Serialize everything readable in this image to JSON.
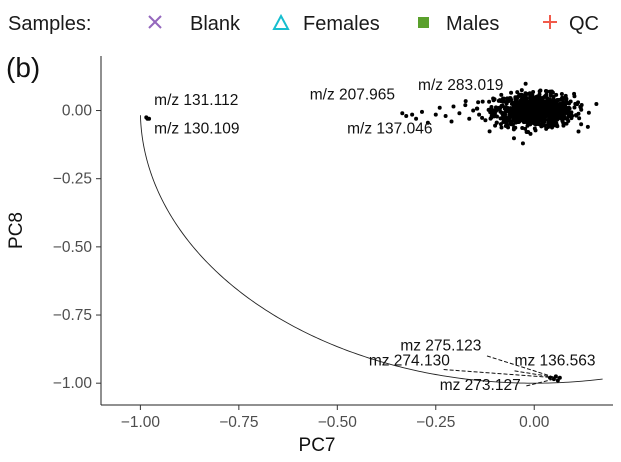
{
  "legend": {
    "title": "Samples:",
    "items": [
      {
        "label": "Blank",
        "symbol": "cross",
        "color": "#9467bd"
      },
      {
        "label": "Females",
        "symbol": "triangle",
        "color": "#17becf"
      },
      {
        "label": "Males",
        "symbol": "square",
        "color": "#5aa02c"
      },
      {
        "label": "QC",
        "symbol": "plus",
        "color": "#f15a4a"
      }
    ]
  },
  "panel_label": "(b)",
  "chart_data": {
    "type": "scatter",
    "xlabel": "PC7",
    "ylabel": "PC8",
    "xlim": [
      -1.1,
      0.2
    ],
    "ylim": [
      -1.08,
      0.2
    ],
    "x_ticks": [
      -1.0,
      -0.75,
      -0.5,
      -0.25,
      0.0
    ],
    "x_tick_labels": [
      "−1.00",
      "−0.75",
      "−0.50",
      "−0.25",
      "0.00"
    ],
    "y_ticks": [
      0.0,
      -0.25,
      -0.5,
      -0.75,
      -1.0
    ],
    "y_tick_labels": [
      "0.00",
      "−0.25",
      "−0.50",
      "−0.75",
      "−1.00"
    ],
    "grid": false,
    "point_color": "#000000",
    "main_cluster": {
      "x_center": 0.0,
      "y_center": 0.0,
      "x_spread": 0.05,
      "y_spread": 0.03,
      "count": 900
    },
    "points": [
      {
        "x": -0.985,
        "y": -0.025
      },
      {
        "x": -0.978,
        "y": -0.03
      },
      {
        "x": -0.982,
        "y": -0.03
      },
      {
        "x": -0.335,
        "y": -0.01
      },
      {
        "x": -0.325,
        "y": -0.02
      },
      {
        "x": -0.31,
        "y": -0.015
      },
      {
        "x": -0.3,
        "y": -0.03
      },
      {
        "x": -0.285,
        "y": -0.005
      },
      {
        "x": -0.27,
        "y": -0.045
      },
      {
        "x": -0.25,
        "y": -0.015
      },
      {
        "x": -0.24,
        "y": 0.01
      },
      {
        "x": -0.225,
        "y": -0.02
      },
      {
        "x": -0.21,
        "y": -0.04
      },
      {
        "x": -0.205,
        "y": 0.015
      },
      {
        "x": -0.19,
        "y": -0.01
      },
      {
        "x": -0.175,
        "y": 0.02
      },
      {
        "x": -0.165,
        "y": -0.03
      },
      {
        "x": -0.155,
        "y": 0.0
      },
      {
        "x": -0.14,
        "y": -0.015
      },
      {
        "x": 0.04,
        "y": -0.98
      },
      {
        "x": 0.05,
        "y": -0.985
      },
      {
        "x": 0.055,
        "y": -0.975
      },
      {
        "x": 0.06,
        "y": -0.99
      },
      {
        "x": 0.065,
        "y": -0.98
      }
    ],
    "circle": {
      "cx": 0,
      "cy": 0,
      "r": 1,
      "theta_start_deg": 181,
      "theta_end_deg": 280
    },
    "annotations": [
      {
        "text": "m/z 131.112",
        "x": -0.965,
        "y": 0.02
      },
      {
        "text": "m/z 130.109",
        "x": -0.965,
        "y": -0.085
      },
      {
        "text": "m/z 207.965",
        "x": -0.57,
        "y": 0.04
      },
      {
        "text": "m/z 283.019",
        "x": -0.295,
        "y": 0.075
      },
      {
        "text": "m/z 137.046",
        "x": -0.475,
        "y": -0.085
      },
      {
        "text": "mz 275.123",
        "x": -0.34,
        "y": -0.88
      },
      {
        "text": "mz 274.130",
        "x": -0.42,
        "y": -0.935
      },
      {
        "text": "mz 136.563",
        "x": -0.05,
        "y": -0.935
      },
      {
        "text": "mz 273.127",
        "x": -0.24,
        "y": -1.025
      }
    ],
    "leader_lines": [
      {
        "x1": -0.12,
        "y1": -0.9,
        "x2": 0.055,
        "y2": -0.98
      },
      {
        "x1": -0.23,
        "y1": -0.95,
        "x2": 0.055,
        "y2": -0.98
      },
      {
        "x1": -0.05,
        "y1": -0.955,
        "x2": 0.06,
        "y2": -0.98
      },
      {
        "x1": -0.02,
        "y1": -1.01,
        "x2": 0.05,
        "y2": -0.985
      }
    ]
  }
}
